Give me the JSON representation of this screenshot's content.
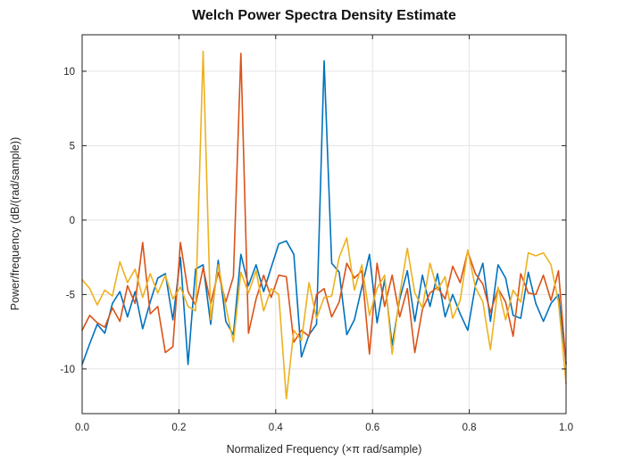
{
  "chart_data": {
    "type": "line",
    "title": "Welch Power Spectra Density Estimate",
    "xlabel": "Normalized Frequency (×π rad/sample)",
    "ylabel": "Power/frequency (dB/(rad/sample))",
    "xlim": [
      0,
      1
    ],
    "ylim": [
      -13.0,
      12.45
    ],
    "xticks": [
      0.0,
      0.2,
      0.4,
      0.6,
      0.8,
      1.0
    ],
    "xtick_labels": [
      "0.0",
      "0.2",
      "0.4",
      "0.6",
      "0.8",
      "1.0"
    ],
    "yticks": [
      -10,
      -5,
      0,
      5,
      10
    ],
    "ytick_labels": [
      "-10",
      "-5",
      "0",
      "5",
      "10"
    ],
    "grid": true,
    "legend": "none",
    "x_start": 0,
    "x_step": 0.015625,
    "colors": {
      "axis": "#222222",
      "grid": "#e4e4e4",
      "text": "#262626",
      "background": "#ffffff"
    },
    "series": [
      {
        "name": "blue-series",
        "color": "#0072BD",
        "peak": {
          "x": 0.5,
          "y": 10.7
        },
        "values": [
          -9.7,
          -8.3,
          -7.0,
          -7.6,
          -5.6,
          -4.8,
          -6.5,
          -4.8,
          -7.3,
          -5.5,
          -3.9,
          -3.6,
          -6.7,
          -2.5,
          -9.7,
          -3.3,
          -3.0,
          -7.0,
          -2.7,
          -6.8,
          -7.7,
          -2.3,
          -4.4,
          -3.0,
          -4.8,
          -3.2,
          -1.6,
          -1.4,
          -2.3,
          -9.2,
          -7.7,
          -7.0,
          10.7,
          -2.9,
          -3.5,
          -7.7,
          -6.7,
          -4.5,
          -2.3,
          -6.9,
          -4.0,
          -8.4,
          -5.3,
          -3.4,
          -6.8,
          -3.7,
          -5.8,
          -3.6,
          -6.5,
          -5.0,
          -6.3,
          -7.4,
          -4.4,
          -2.9,
          -6.8,
          -3.0,
          -3.9,
          -6.4,
          -6.6,
          -3.5,
          -5.6,
          -6.8,
          -5.6,
          -5.0,
          -9.6
        ]
      },
      {
        "name": "orange-series",
        "color": "#D95319",
        "peak": {
          "x": 0.328,
          "y": 11.2
        },
        "values": [
          -7.4,
          -6.4,
          -6.9,
          -7.2,
          -5.9,
          -6.8,
          -4.4,
          -5.6,
          -1.5,
          -6.3,
          -5.8,
          -8.9,
          -8.5,
          -1.5,
          -4.8,
          -5.7,
          -3.2,
          -5.6,
          -3.5,
          -5.5,
          -3.8,
          11.2,
          -7.6,
          -5.3,
          -3.7,
          -5.2,
          -3.7,
          -3.8,
          -8.2,
          -7.4,
          -7.8,
          -5.0,
          -4.6,
          -6.5,
          -5.5,
          -2.9,
          -3.9,
          -3.4,
          -9.0,
          -2.9,
          -5.8,
          -3.7,
          -6.5,
          -4.6,
          -8.9,
          -6.0,
          -4.9,
          -4.5,
          -5.3,
          -3.1,
          -4.2,
          -2.1,
          -3.6,
          -4.3,
          -6.2,
          -4.6,
          -5.5,
          -7.8,
          -3.6,
          -4.9,
          -5.0,
          -3.7,
          -5.4,
          -3.4,
          -9.7
        ]
      },
      {
        "name": "yellow-series",
        "color": "#EDB120",
        "peak": {
          "x": 0.25,
          "y": 11.35
        },
        "values": [
          -4.0,
          -4.6,
          -5.7,
          -4.7,
          -5.1,
          -2.8,
          -4.2,
          -3.3,
          -5.2,
          -3.6,
          -4.9,
          -3.7,
          -5.3,
          -4.5,
          -5.8,
          -6.1,
          11.35,
          -6.7,
          -3.0,
          -5.8,
          -8.2,
          -3.5,
          -4.9,
          -3.4,
          -6.1,
          -4.6,
          -5.0,
          -12.0,
          -7.4,
          -8.1,
          -4.2,
          -6.6,
          -5.2,
          -5.1,
          -2.5,
          -1.2,
          -4.7,
          -3.0,
          -6.4,
          -4.6,
          -3.7,
          -9.0,
          -5.0,
          -1.9,
          -4.9,
          -5.9,
          -2.9,
          -4.7,
          -3.8,
          -6.6,
          -5.4,
          -2.0,
          -4.5,
          -5.5,
          -8.7,
          -4.5,
          -6.7,
          -4.7,
          -5.5,
          -2.2,
          -2.4,
          -2.2,
          -3.0,
          -5.5,
          -11.0
        ]
      }
    ]
  }
}
